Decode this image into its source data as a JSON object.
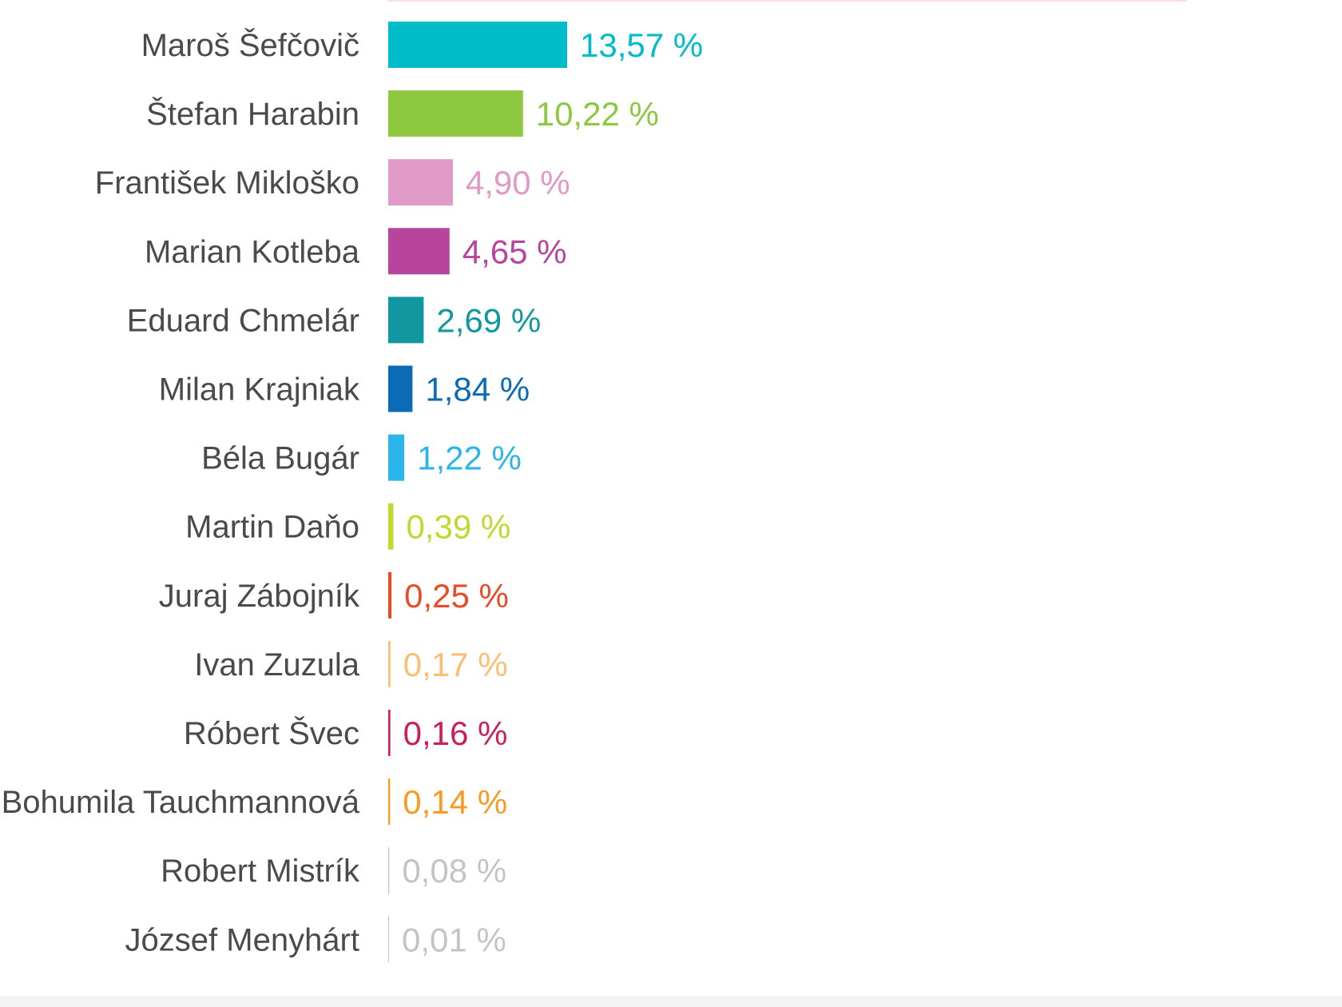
{
  "chart_data": {
    "type": "bar",
    "orientation": "horizontal",
    "title": "",
    "xlabel": "",
    "ylabel": "",
    "grid": false,
    "legend": "none",
    "xlim": [
      0,
      100
    ],
    "categories": [
      "Maroš Šefčovič",
      "Štefan Harabin",
      "František Mikloško",
      "Marian Kotleba",
      "Eduard Chmelár",
      "Milan Krajniak",
      "Béla Bugár",
      "Martin Daňo",
      "Juraj Zábojník",
      "Ivan Zuzula",
      "Róbert Švec",
      "Bohumila Tauchmannová",
      "Robert Mistrík",
      "József Menyhárt"
    ],
    "values": [
      13.57,
      10.22,
      4.9,
      4.65,
      2.69,
      1.84,
      1.22,
      0.39,
      0.25,
      0.17,
      0.16,
      0.14,
      0.08,
      0.01
    ],
    "data_labels": [
      "13,57 %",
      "10,22 %",
      "4,90 %",
      "4,65 %",
      "2,69 %",
      "1,84 %",
      "1,22 %",
      "0,39 %",
      "0,25 %",
      "0,17 %",
      "0,16 %",
      "0,14 %",
      "0,08 %",
      "0,01 %"
    ],
    "colors": [
      "#00bcc8",
      "#8dc840",
      "#e09ac8",
      "#b8449e",
      "#11979f",
      "#0b6bb6",
      "#2bb5ea",
      "#c3d82e",
      "#e94b26",
      "#fbbf73",
      "#cc1e5c",
      "#f99a23",
      "#c4c4c4",
      "#c4c4c4"
    ]
  }
}
